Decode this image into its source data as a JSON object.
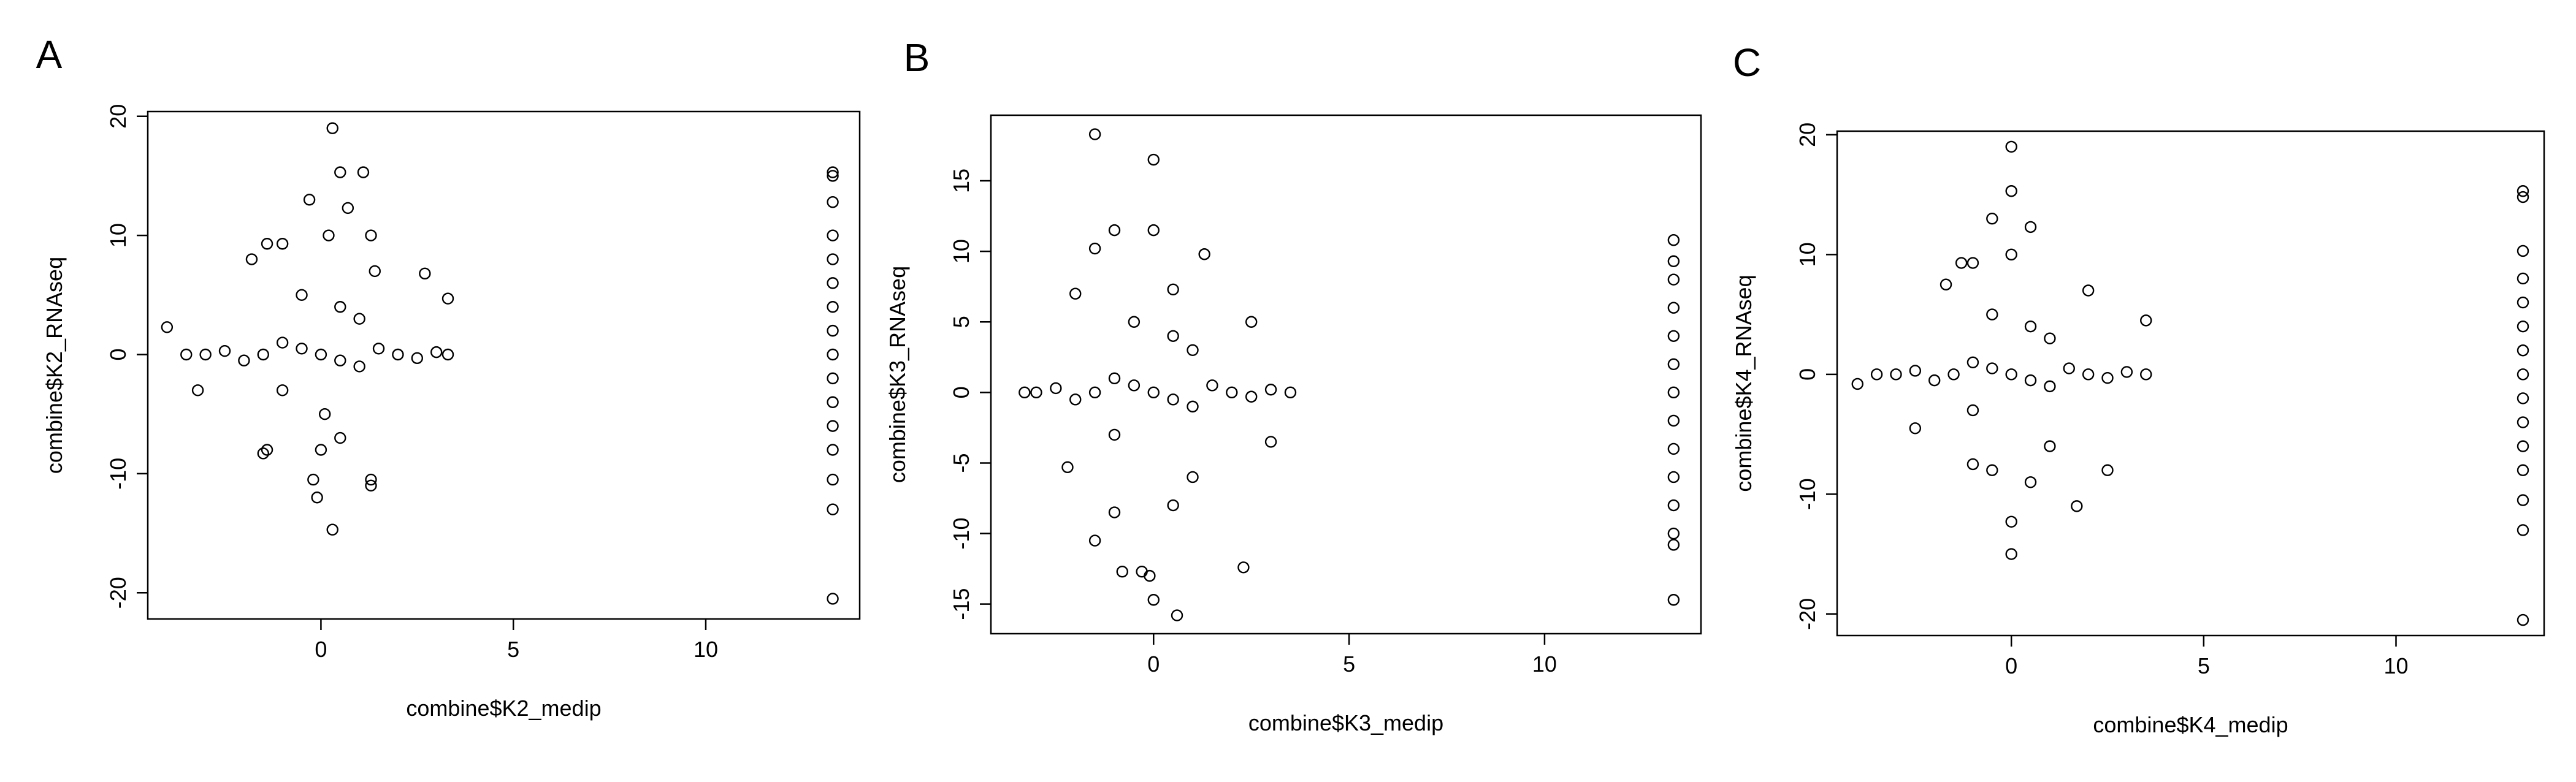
{
  "chart_data": [
    {
      "type": "scatter",
      "panel_label": "A",
      "xlabel": "combine$K2_medip",
      "ylabel": "combine$K2_RNAseq",
      "xlim": [
        -4.5,
        14
      ],
      "ylim": [
        -22.2,
        20.4
      ],
      "xticks": [
        0,
        5,
        10
      ],
      "yticks": [
        -20,
        -10,
        0,
        10,
        20
      ],
      "color": "#000000",
      "x": [
        0,
        -0.5,
        0.5,
        -1,
        1,
        -1.5,
        1.5,
        -2,
        2,
        -2.5,
        2.5,
        -3,
        3,
        -3.5,
        3.3,
        -4,
        -3.2,
        0.3,
        0.5,
        1.1,
        0.7,
        -0.3,
        0.2,
        1.3,
        -1,
        -1.4,
        2.7,
        3.3,
        -1.8,
        0,
        -0.2,
        0.3,
        -0.1,
        1.3,
        1.3,
        -1.4,
        -1.5,
        0.5,
        -0.5,
        0.5,
        1,
        -1,
        1.4,
        0.1,
        13.3,
        13.3,
        13.3,
        13.3,
        13.3,
        13.3,
        13.3,
        13.3,
        13.3,
        13.3,
        13.3,
        13.3,
        13.3,
        13.3,
        13.3,
        13.3
      ],
      "y": [
        0,
        0.5,
        -0.5,
        1,
        -1,
        0,
        0.5,
        -0.5,
        0,
        0.3,
        -0.3,
        0,
        0.2,
        0,
        0,
        2.3,
        -3,
        19,
        15.3,
        15.3,
        12.3,
        13,
        10,
        10,
        9.3,
        9.3,
        6.8,
        4.7,
        8,
        -8,
        -10.5,
        -14.7,
        -12,
        -10.5,
        -11,
        -8,
        -8.3,
        -7,
        5,
        4,
        3,
        -3,
        7,
        -5,
        15.3,
        15,
        12.8,
        10,
        8,
        6,
        4,
        2,
        0,
        -2,
        -4,
        -6,
        -8,
        -10.5,
        -13,
        -20.5
      ]
    },
    {
      "type": "scatter",
      "panel_label": "B",
      "xlabel": "combine$K3_medip",
      "ylabel": "combine$K3_RNAseq",
      "xlim": [
        -4.16,
        14
      ],
      "ylim": [
        -17.1,
        19.65
      ],
      "xticks": [
        0,
        5,
        10
      ],
      "yticks": [
        -15,
        -10,
        -5,
        0,
        5,
        10,
        15
      ],
      "color": "#000000",
      "x": [
        0,
        -0.5,
        0.5,
        -1,
        1,
        -1.5,
        1.5,
        -2,
        2,
        -2.5,
        2.5,
        -3,
        3,
        3.5,
        -3.3,
        -1.5,
        0,
        -1,
        0,
        -1.5,
        1.3,
        -2,
        0.5,
        -2.2,
        -1.5,
        -0.3,
        -0.1,
        0.6,
        0,
        2.3,
        -0.8,
        -1,
        0.5,
        1,
        3,
        -0.5,
        0.5,
        1,
        -1,
        2.5,
        13.3,
        13.3,
        13.3,
        13.3,
        13.3,
        13.3,
        13.3,
        13.3,
        13.3,
        13.3,
        13.3,
        13.3,
        13.3,
        13.3
      ],
      "y": [
        0,
        0.5,
        -0.5,
        1,
        -1,
        0,
        0.5,
        -0.5,
        0,
        0.3,
        -0.3,
        0,
        0.2,
        0,
        0,
        18.3,
        16.5,
        11.5,
        11.5,
        10.2,
        9.8,
        7,
        7.3,
        -5.3,
        -10.5,
        -12.7,
        -13,
        -15.8,
        -14.7,
        -12.4,
        -12.7,
        -8.5,
        -8,
        -6,
        -3.5,
        5,
        4,
        3,
        -3,
        5,
        10.8,
        9.3,
        8,
        6,
        4,
        2,
        0,
        -2,
        -4,
        -6,
        -8,
        -10,
        -10.8,
        -14.7
      ]
    },
    {
      "type": "scatter",
      "panel_label": "C",
      "xlabel": "combine$K4_medip",
      "ylabel": "combine$K4_RNAseq",
      "xlim": [
        -4.53,
        13.85
      ],
      "ylim": [
        -21.8,
        20.3
      ],
      "xticks": [
        0,
        5,
        10
      ],
      "yticks": [
        -20,
        -10,
        0,
        10,
        20
      ],
      "color": "#000000",
      "x": [
        0,
        -0.5,
        0.5,
        -1,
        1,
        -1.5,
        1.5,
        -2,
        2,
        -2.5,
        2.5,
        -3,
        3,
        3.5,
        -3.5,
        -4,
        -2.5,
        0,
        0,
        -0.5,
        0.5,
        -1,
        -1.3,
        0,
        -1.7,
        3.5,
        0,
        0,
        0.5,
        1.7,
        -1,
        2.5,
        -0.5,
        1,
        -0.5,
        0.5,
        1,
        -1,
        2,
        13.3,
        13.3,
        13.3,
        13.3,
        13.3,
        13.3,
        13.3,
        13.3,
        13.3,
        13.3,
        13.3,
        13.3,
        13.3,
        13.3,
        13.3
      ],
      "y": [
        0,
        0.5,
        -0.5,
        1,
        -1,
        0,
        0.5,
        -0.5,
        0,
        0.3,
        -0.3,
        0,
        0.2,
        0,
        0,
        -0.8,
        -4.5,
        19,
        15.3,
        13,
        12.3,
        9.3,
        9.3,
        10,
        7.5,
        4.5,
        -15,
        -12.3,
        -9,
        -11,
        -7.5,
        -8,
        -8,
        -6,
        5,
        4,
        3,
        -3,
        7,
        15.3,
        14.8,
        10.3,
        8,
        6,
        4,
        2,
        0,
        -2,
        -4,
        -6,
        -8,
        -10.5,
        -13,
        -20.5
      ]
    }
  ]
}
